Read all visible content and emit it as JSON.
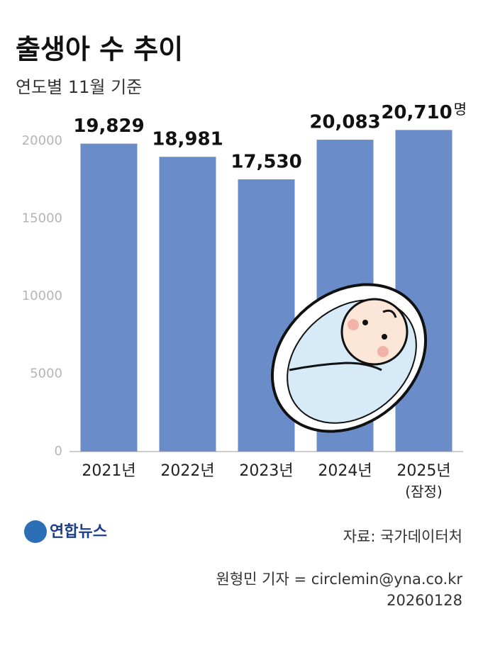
{
  "chart_data": {
    "type": "bar",
    "title": "출생아 수 추이",
    "subtitle": "연도별 11월 기준",
    "categories": [
      "2021년",
      "2022년",
      "2023년",
      "2024년",
      "2025년"
    ],
    "category_note": "(잠정)",
    "values": [
      19829,
      18981,
      17530,
      20083,
      20710
    ],
    "value_labels": [
      "19,829",
      "18,981",
      "17,530",
      "20,083",
      "20,710"
    ],
    "value_unit": "명",
    "color": "#6a8cc8",
    "ylim": [
      0,
      21000
    ],
    "yticks": [
      0,
      5000,
      10000,
      15000,
      20000
    ],
    "grid": false
  },
  "footer": {
    "logo": "연합뉴스",
    "source": "자료: 국가데이터처",
    "byline": "원형민 기자 = circlemin@yna.co.kr",
    "date": "20260128"
  }
}
